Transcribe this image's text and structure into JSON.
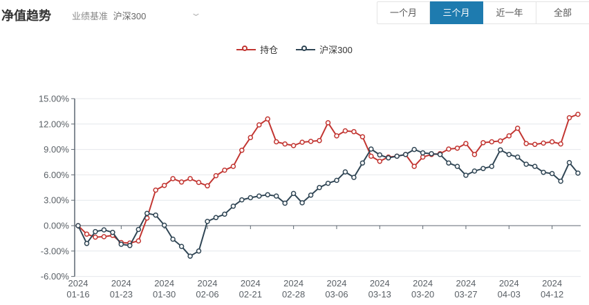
{
  "header": {
    "title": "净值趋势",
    "benchmark_label": "业绩基准",
    "benchmark_value": "沪深300"
  },
  "tabs": [
    {
      "label": "一个月",
      "active": false
    },
    {
      "label": "三个月",
      "active": true
    },
    {
      "label": "近一年",
      "active": false
    },
    {
      "label": "全部",
      "active": false
    }
  ],
  "colors": {
    "series_holding": "#c23531",
    "series_benchmark": "#2f4554",
    "active_tab_bg": "#1e7baf",
    "grid_line": "#e4e7eb",
    "axis_line": "#5c6670",
    "axis_text": "#5a6066"
  },
  "chart_data": {
    "type": "line",
    "title": "净值趋势",
    "legend_position": "top-center",
    "grid": true,
    "ylim": [
      -6,
      15
    ],
    "y_tick_step": 3,
    "y_tick_labels": [
      "15.00%",
      "12.00%",
      "9.00%",
      "6.00%",
      "3.00%",
      "0.00%",
      "-3.00%",
      "-6.00%"
    ],
    "x_year": "2024",
    "x": [
      "01-16",
      "01-17",
      "01-18",
      "01-19",
      "01-22",
      "01-23",
      "01-24",
      "01-25",
      "01-26",
      "01-29",
      "01-30",
      "01-31",
      "02-01",
      "02-02",
      "02-05",
      "02-06",
      "02-07",
      "02-08",
      "02-19",
      "02-20",
      "02-21",
      "02-22",
      "02-23",
      "02-26",
      "02-27",
      "02-28",
      "02-29",
      "03-01",
      "03-04",
      "03-05",
      "03-06",
      "03-07",
      "03-08",
      "03-11",
      "03-12",
      "03-13",
      "03-14",
      "03-15",
      "03-18",
      "03-19",
      "03-20",
      "03-21",
      "03-22",
      "03-25",
      "03-26",
      "03-27",
      "03-28",
      "03-29",
      "04-01",
      "04-02",
      "04-03",
      "04-08",
      "04-09",
      "04-10",
      "04-11",
      "04-12",
      "04-15",
      "04-16",
      "04-17"
    ],
    "x_axis_label_indices": [
      0,
      5,
      10,
      15,
      20,
      25,
      30,
      35,
      40,
      45,
      50,
      55
    ],
    "x_axis_labels": [
      "01-16",
      "01-23",
      "01-30",
      "02-06",
      "02-21",
      "02-28",
      "03-06",
      "03-13",
      "03-20",
      "03-27",
      "04-03",
      "04-12"
    ],
    "unit": "percent",
    "series": [
      {
        "name": "持仓",
        "color": "#c23531",
        "values": [
          0.0,
          -1.0,
          -1.35,
          -1.3,
          -1.15,
          -2.0,
          -2.05,
          -1.8,
          0.9,
          4.2,
          4.75,
          5.55,
          5.15,
          5.55,
          5.1,
          4.7,
          5.9,
          6.55,
          7.0,
          8.9,
          10.4,
          11.9,
          12.6,
          9.9,
          9.65,
          9.45,
          9.85,
          9.95,
          10.05,
          12.15,
          10.6,
          11.2,
          11.1,
          10.5,
          8.2,
          7.6,
          8.1,
          8.2,
          8.4,
          7.0,
          8.1,
          8.4,
          8.5,
          9.05,
          9.15,
          9.7,
          8.4,
          9.8,
          9.9,
          10.0,
          10.6,
          11.5,
          9.7,
          9.6,
          9.75,
          9.9,
          9.65,
          12.75,
          13.15
        ]
      },
      {
        "name": "沪深300",
        "color": "#2f4554",
        "values": [
          0.0,
          -2.1,
          -0.7,
          -0.5,
          -0.8,
          -2.2,
          -2.35,
          -0.45,
          1.45,
          1.25,
          0.05,
          -1.6,
          -2.45,
          -3.6,
          -3.0,
          0.5,
          0.95,
          1.35,
          2.3,
          3.05,
          3.3,
          3.5,
          3.65,
          3.5,
          2.65,
          3.8,
          2.7,
          3.6,
          4.5,
          5.0,
          5.35,
          6.35,
          5.7,
          7.4,
          9.05,
          8.35,
          8.0,
          8.2,
          8.4,
          9.0,
          8.6,
          8.5,
          8.4,
          7.4,
          7.0,
          5.95,
          6.45,
          6.75,
          7.0,
          8.95,
          8.4,
          8.1,
          7.25,
          7.0,
          6.3,
          6.15,
          5.25,
          7.45,
          6.2
        ]
      }
    ]
  }
}
